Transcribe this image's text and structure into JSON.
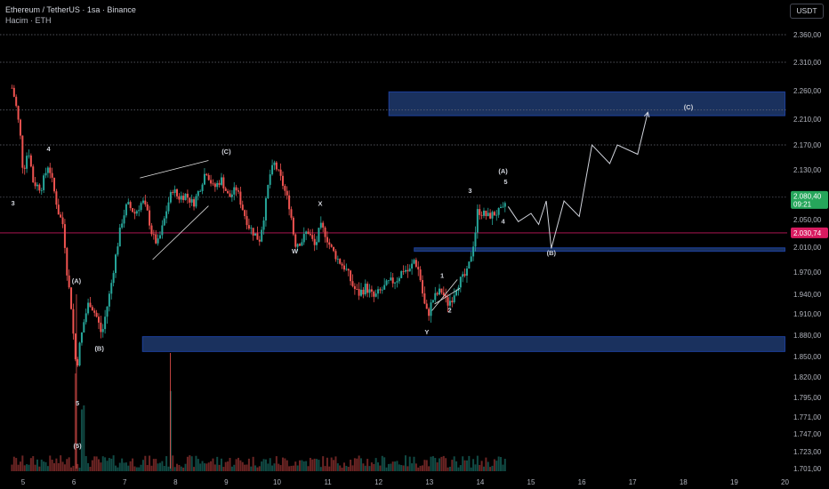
{
  "header": {
    "title": "Ethereum / TetherUS · 1sa · Binance",
    "volume_label": "Hacim · ETH"
  },
  "currency_button": "USDT",
  "colors": {
    "background": "#000000",
    "up": "#26a69a",
    "down": "#ef5350",
    "zone": "#1e3a6e",
    "zone_border": "#2962ff",
    "price_badge": "#26a65b",
    "red_line_badge": "#d81b60",
    "projection": "#d1d4dc",
    "grid_text": "#b2b5be"
  },
  "chart_data": {
    "type": "candlestick",
    "y_axis_ticks": [
      "2.360,00",
      "2.310,00",
      "2.260,00",
      "2.210,00",
      "2.170,00",
      "2.130,00",
      "2.090,00",
      "2.050,00",
      "2.010,00",
      "1.970,00",
      "1.940,00",
      "1.910,00",
      "1.880,00",
      "1.850,00",
      "1.820,00",
      "1.795,00",
      "1.771,00",
      "1.747,00",
      "1.723,00",
      "1.701,00"
    ],
    "y_tick_values": [
      2360,
      2310,
      2260,
      2210,
      2170,
      2130,
      2090,
      2050,
      2010,
      1970,
      1940,
      1910,
      1880,
      1850,
      1820,
      1795,
      1771,
      1747,
      1723,
      1701
    ],
    "x_axis_ticks": [
      "5",
      "6",
      "7",
      "8",
      "9",
      "10",
      "11",
      "12",
      "13",
      "14",
      "15",
      "16",
      "17",
      "18",
      "19",
      "20"
    ],
    "current_price": "2.080,40",
    "countdown": "09:21",
    "red_line_price": "2.030,74",
    "red_line_value": 2030.74,
    "zones": [
      {
        "from_day": 12.2,
        "to_day": 20.0,
        "low": 2216,
        "high": 2258,
        "label": "(C)"
      },
      {
        "from_day": 12.7,
        "to_day": 20.0,
        "low": 2004,
        "high": 2009,
        "label": "(B)"
      },
      {
        "from_day": 7.35,
        "to_day": 20.0,
        "low": 1857,
        "high": 1878,
        "label": ""
      }
    ],
    "dotted_levels": [
      2360,
      2310,
      2226,
      2170,
      2086
    ],
    "wave_labels": [
      {
        "text": "3",
        "day": 4.8,
        "price": 2073
      },
      {
        "text": "4",
        "day": 5.5,
        "price": 2160
      },
      {
        "text": "(A)",
        "day": 6.05,
        "price": 1955
      },
      {
        "text": "(B)",
        "day": 6.5,
        "price": 1858
      },
      {
        "text": "5",
        "day": 6.07,
        "price": 1785
      },
      {
        "text": "(5)",
        "day": 6.07,
        "price": 1728
      },
      {
        "text": "(C)",
        "day": 9.0,
        "price": 2156
      },
      {
        "text": "W",
        "day": 10.35,
        "price": 2000
      },
      {
        "text": "X",
        "day": 10.85,
        "price": 2072
      },
      {
        "text": "Y",
        "day": 12.95,
        "price": 1881
      },
      {
        "text": "1",
        "day": 13.25,
        "price": 1962
      },
      {
        "text": "2",
        "day": 13.4,
        "price": 1912
      },
      {
        "text": "3",
        "day": 13.8,
        "price": 2093
      },
      {
        "text": "4",
        "day": 14.45,
        "price": 2044
      },
      {
        "text": "(A)",
        "day": 14.45,
        "price": 2124
      },
      {
        "text": "5",
        "day": 14.5,
        "price": 2107
      },
      {
        "text": "(B)",
        "day": 15.4,
        "price": 1997
      },
      {
        "text": "(C)",
        "day": 18.1,
        "price": 2227
      }
    ],
    "projection_path": [
      [
        14.55,
        2071
      ],
      [
        14.75,
        2047
      ],
      [
        15.0,
        2060
      ],
      [
        15.15,
        2043
      ],
      [
        15.3,
        2080
      ],
      [
        15.4,
        2008
      ],
      [
        15.65,
        2080
      ],
      [
        15.95,
        2055
      ],
      [
        16.2,
        2170
      ],
      [
        16.55,
        2140
      ],
      [
        16.7,
        2170
      ],
      [
        17.1,
        2155
      ],
      [
        17.3,
        2222
      ]
    ],
    "wedges": [
      {
        "points": [
          [
            7.3,
            2117
          ],
          [
            8.65,
            2145
          ]
        ]
      },
      {
        "points": [
          [
            7.55,
            1990
          ],
          [
            8.65,
            2072
          ]
        ]
      },
      {
        "points": [
          [
            13.05,
            1915
          ],
          [
            13.55,
            1960
          ]
        ]
      },
      {
        "points": [
          [
            13.1,
            1925
          ],
          [
            13.6,
            1948
          ]
        ]
      }
    ],
    "volume_spikes": [
      [
        6.05,
        1
      ],
      [
        6.2,
        0.6
      ],
      [
        7.9,
        0.78
      ],
      [
        6.15,
        0.55
      ]
    ]
  }
}
